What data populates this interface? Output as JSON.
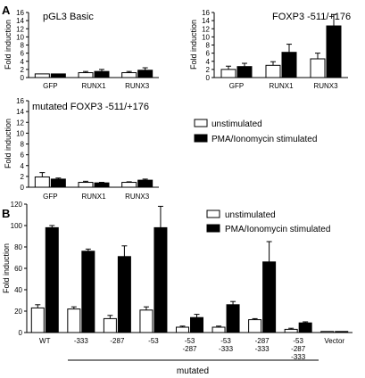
{
  "panel_labels": {
    "A": "A",
    "B": "B"
  },
  "legend": {
    "unstimulated": "unstimulated",
    "stimulated": "PMA/Ionomycin stimulated"
  },
  "mutated_label": "mutated",
  "colors": {
    "unstimulated": "#ffffff",
    "stimulated": "#000000",
    "stroke": "#000000"
  },
  "chart_data": [
    {
      "id": "a1",
      "type": "bar",
      "title": "pGL3 Basic",
      "ylabel": "Fold induction",
      "ylim": [
        0,
        16
      ],
      "yticks": [
        0,
        2,
        4,
        6,
        8,
        10,
        12,
        14,
        16
      ],
      "categories": [
        "GFP",
        "RUNX1",
        "RUNX3"
      ],
      "series": [
        {
          "key": "unstimulated",
          "values": [
            0.9,
            1.2,
            1.2
          ],
          "errors": [
            0,
            0.3,
            0.3
          ]
        },
        {
          "key": "stimulated",
          "values": [
            0.9,
            1.5,
            1.8
          ],
          "errors": [
            0,
            0.5,
            0.6
          ]
        }
      ]
    },
    {
      "id": "a2",
      "type": "bar",
      "title": "FOXP3 -511/+176",
      "ylabel": "Fold induction",
      "ylim": [
        0,
        16
      ],
      "yticks": [
        0,
        2,
        4,
        6,
        8,
        10,
        12,
        14,
        16
      ],
      "categories": [
        "GFP",
        "RUNX1",
        "RUNX3"
      ],
      "series": [
        {
          "key": "unstimulated",
          "values": [
            2.0,
            3.0,
            4.6
          ],
          "errors": [
            0.8,
            0.9,
            1.4
          ]
        },
        {
          "key": "stimulated",
          "values": [
            2.7,
            6.2,
            12.7
          ],
          "errors": [
            0.8,
            2.0,
            2.8
          ]
        }
      ]
    },
    {
      "id": "a3",
      "type": "bar",
      "title": "mutated FOXP3 -511/+176",
      "ylabel": "Fold induction",
      "ylim": [
        0,
        16
      ],
      "yticks": [
        0,
        2,
        4,
        6,
        8,
        10,
        12,
        14,
        16
      ],
      "categories": [
        "GFP",
        "RUNX1",
        "RUNX3"
      ],
      "series": [
        {
          "key": "unstimulated",
          "values": [
            1.9,
            0.9,
            0.9
          ],
          "errors": [
            0.8,
            0.2,
            0.1
          ]
        },
        {
          "key": "stimulated",
          "values": [
            1.5,
            0.8,
            1.3
          ],
          "errors": [
            0.2,
            0.1,
            0.2
          ]
        }
      ]
    },
    {
      "id": "b",
      "type": "bar",
      "title": "",
      "ylabel": "Fold induction",
      "ylim": [
        0,
        120
      ],
      "yticks": [
        0,
        20,
        40,
        60,
        80,
        100,
        120
      ],
      "categories": [
        "WT",
        "-333",
        "-287",
        "-53",
        "-53\n-287",
        "-53\n-333",
        "-287\n-333",
        "-53\n-287\n-333",
        "Vector"
      ],
      "series": [
        {
          "key": "unstimulated",
          "values": [
            23,
            22,
            13,
            21,
            5,
            5,
            12,
            3,
            1
          ],
          "errors": [
            3,
            2,
            3,
            3,
            1,
            1,
            1,
            1,
            0
          ]
        },
        {
          "key": "stimulated",
          "values": [
            98,
            76,
            71,
            98,
            14,
            26,
            66,
            9,
            1
          ],
          "errors": [
            2,
            2,
            10,
            20,
            3,
            3,
            19,
            1,
            0
          ]
        }
      ]
    }
  ]
}
